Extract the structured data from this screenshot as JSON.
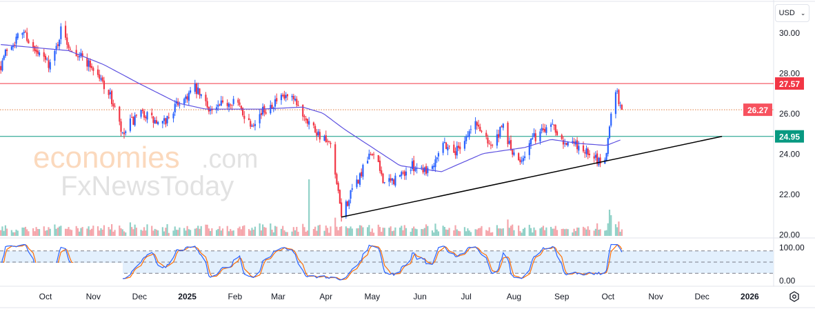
{
  "currency_selector": {
    "label": "USD",
    "icon": "chevron-down-icon"
  },
  "watermark": {
    "line1": "economies",
    "line1_suffix": ".com",
    "line2": "FxNewsToday"
  },
  "settings_icon": "gear-hexagon-icon",
  "colors": {
    "up": "#2962ff",
    "down": "#f23645",
    "ma": "#5b4fe0",
    "resistance": "#f23645",
    "current": "#f7525f",
    "support": "#089981",
    "trend": "#000000",
    "stoch_k": "#2962ff",
    "stoch_d": "#ff6d00",
    "band": "#e3f0fd"
  },
  "chart_data": {
    "type": "candlestick",
    "title": "",
    "y_axis": {
      "ticks": [
        "30.00",
        "28.00",
        "26.00",
        "24.00",
        "22.00",
        "20.00"
      ],
      "range": [
        20,
        30.8
      ]
    },
    "x_axis": {
      "ticks": [
        {
          "label": "Oct",
          "date": "2024-10-01"
        },
        {
          "label": "Nov",
          "date": "2024-11-01"
        },
        {
          "label": "Dec",
          "date": "2024-12-01"
        },
        {
          "label": "2025",
          "date": "2025-01-01",
          "bold": true
        },
        {
          "label": "Feb",
          "date": "2025-02-01"
        },
        {
          "label": "Mar",
          "date": "2025-03-01"
        },
        {
          "label": "Apr",
          "date": "2025-04-01"
        },
        {
          "label": "May",
          "date": "2025-05-01"
        },
        {
          "label": "Jun",
          "date": "2025-06-01"
        },
        {
          "label": "Jul",
          "date": "2025-07-01"
        },
        {
          "label": "Aug",
          "date": "2025-08-01"
        },
        {
          "label": "Sep",
          "date": "2025-09-01"
        },
        {
          "label": "Oct",
          "date": "2025-10-01"
        },
        {
          "label": "Nov",
          "date": "2025-11-01"
        },
        {
          "label": "Dec",
          "date": "2025-12-01"
        },
        {
          "label": "2026",
          "date": "2026-01-01",
          "bold": true
        }
      ]
    },
    "price_path": [
      [
        "2024-09-02",
        28.5
      ],
      [
        "2024-09-06",
        29.3
      ],
      [
        "2024-09-17",
        30.2
      ],
      [
        "2024-09-24",
        29.1
      ],
      [
        "2024-10-05",
        28.5
      ],
      [
        "2024-10-11",
        30.2
      ],
      [
        "2024-10-16",
        29.5
      ],
      [
        "2024-10-30",
        28.5
      ],
      [
        "2024-11-10",
        27.3
      ],
      [
        "2024-11-16",
        26.1
      ],
      [
        "2024-11-20",
        24.9
      ],
      [
        "2024-11-25",
        25.6
      ],
      [
        "2024-12-04",
        26.1
      ],
      [
        "2024-12-15",
        25.4
      ],
      [
        "2024-12-26",
        26.6
      ],
      [
        "2025-01-06",
        27.3
      ],
      [
        "2025-01-17",
        26.2
      ],
      [
        "2025-01-31",
        26.8
      ],
      [
        "2025-02-11",
        25.6
      ],
      [
        "2025-02-25",
        26.6
      ],
      [
        "2025-03-08",
        26.9
      ],
      [
        "2025-03-17",
        26.1
      ],
      [
        "2025-03-26",
        25.2
      ],
      [
        "2025-04-04",
        24.4
      ],
      [
        "2025-04-09",
        22.0
      ],
      [
        "2025-04-11",
        21.1
      ],
      [
        "2025-04-20",
        22.5
      ],
      [
        "2025-05-01",
        24.2
      ],
      [
        "2025-05-10",
        22.5
      ],
      [
        "2025-05-19",
        23.0
      ],
      [
        "2025-05-28",
        23.5
      ],
      [
        "2025-06-08",
        23.3
      ],
      [
        "2025-06-15",
        24.7
      ],
      [
        "2025-06-24",
        24.2
      ],
      [
        "2025-07-07",
        25.6
      ],
      [
        "2025-07-18",
        24.5
      ],
      [
        "2025-07-25",
        25.4
      ],
      [
        "2025-08-03",
        23.5
      ],
      [
        "2025-08-12",
        24.7
      ],
      [
        "2025-08-25",
        25.7
      ],
      [
        "2025-09-03",
        24.7
      ],
      [
        "2025-09-14",
        24.4
      ],
      [
        "2025-09-21",
        23.8
      ],
      [
        "2025-09-29",
        23.7
      ],
      [
        "2025-10-02",
        25.4
      ],
      [
        "2025-10-04",
        27.1
      ],
      [
        "2025-10-06",
        27.4
      ],
      [
        "2025-10-08",
        26.6
      ],
      [
        "2025-10-10",
        26.27
      ]
    ],
    "moving_average": [
      [
        "2024-09-02",
        29.5
      ],
      [
        "2024-10-16",
        29.2
      ],
      [
        "2024-11-08",
        28.5
      ],
      [
        "2024-11-30",
        27.6
      ],
      [
        "2024-12-26",
        26.6
      ],
      [
        "2025-01-13",
        26.3
      ],
      [
        "2025-02-17",
        26.3
      ],
      [
        "2025-03-17",
        26.4
      ],
      [
        "2025-03-30",
        26.1
      ],
      [
        "2025-04-13",
        25.3
      ],
      [
        "2025-05-01",
        24.4
      ],
      [
        "2025-05-19",
        23.5
      ],
      [
        "2025-06-15",
        23.2
      ],
      [
        "2025-07-12",
        24.1
      ],
      [
        "2025-08-08",
        24.4
      ],
      [
        "2025-08-25",
        24.8
      ],
      [
        "2025-09-12",
        24.6
      ],
      [
        "2025-09-30",
        24.5
      ],
      [
        "2025-10-10",
        24.8
      ]
    ],
    "horizontal_lines": [
      {
        "name": "resistance",
        "value": 27.57,
        "label": "27.57",
        "style": "solid"
      },
      {
        "name": "last-price",
        "value": 26.27,
        "label": "26.27",
        "style": "dotted"
      },
      {
        "name": "support",
        "value": 24.95,
        "label": "24.95",
        "style": "solid"
      }
    ],
    "trendline": {
      "from": [
        "2025-04-11",
        20.95
      ],
      "to": [
        "2025-12-14",
        24.95
      ]
    },
    "stochastic": {
      "axis_labels": [
        "100.00",
        "0.00"
      ],
      "levels": [
        80,
        50,
        20
      ]
    }
  }
}
